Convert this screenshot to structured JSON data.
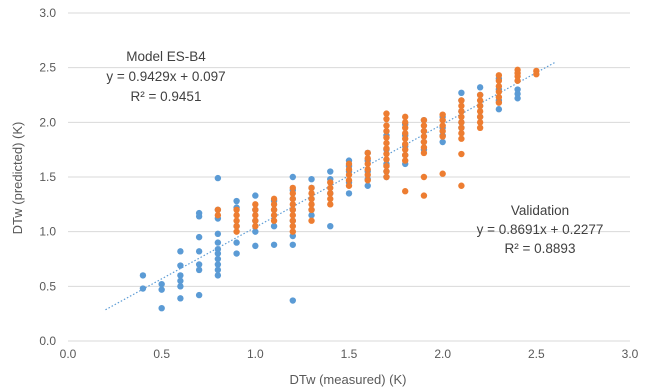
{
  "chart_data": {
    "type": "scatter",
    "xlabel": "DTw (measured) (K)",
    "ylabel": "DTw (predicted) (K)",
    "xlim": [
      0,
      3
    ],
    "ylim": [
      0,
      3
    ],
    "x_ticks": [
      "0.0",
      "0.5",
      "1.0",
      "1.5",
      "2.0",
      "2.5",
      "3.0"
    ],
    "y_ticks": [
      "0.0",
      "0.5",
      "1.0",
      "1.5",
      "2.0",
      "2.5",
      "3.0"
    ],
    "grid": "horizontal",
    "colors": {
      "model": "#5B9BD5",
      "validation": "#ED7D31",
      "trend": "#5B9BD5",
      "grid": "#D9D9D9"
    },
    "annotations": {
      "model": [
        "Model ES-B4",
        "y = 0.9429x + 0.097",
        "R² = 0.9451"
      ],
      "validation": [
        "Validation",
        "y = 0.8691x + 0.2277",
        "R² = 0.8893"
      ]
    },
    "trendline": {
      "slope": 0.9429,
      "intercept": 0.097,
      "x_range": [
        0.2,
        2.6
      ],
      "style": "dotted"
    },
    "series": [
      {
        "color": "#5B9BD5",
        "points": [
          [
            0.4,
            0.6
          ],
          [
            0.4,
            0.48
          ],
          [
            0.5,
            0.52
          ],
          [
            0.5,
            0.47
          ],
          [
            0.5,
            0.3
          ],
          [
            0.6,
            0.82
          ],
          [
            0.6,
            0.69
          ],
          [
            0.6,
            0.6
          ],
          [
            0.6,
            0.55
          ],
          [
            0.6,
            0.5
          ],
          [
            0.6,
            0.39
          ],
          [
            0.7,
            1.17
          ],
          [
            0.7,
            1.14
          ],
          [
            0.7,
            0.95
          ],
          [
            0.7,
            0.82
          ],
          [
            0.7,
            0.7
          ],
          [
            0.7,
            0.65
          ],
          [
            0.7,
            0.42
          ],
          [
            0.8,
            1.49
          ],
          [
            0.8,
            1.2
          ],
          [
            0.8,
            1.12
          ],
          [
            0.8,
            0.98
          ],
          [
            0.8,
            0.9
          ],
          [
            0.8,
            0.84
          ],
          [
            0.8,
            0.8
          ],
          [
            0.8,
            0.75
          ],
          [
            0.8,
            0.7
          ],
          [
            0.8,
            0.65
          ],
          [
            0.8,
            0.6
          ],
          [
            0.9,
            1.28
          ],
          [
            0.9,
            1.22
          ],
          [
            0.9,
            1.05
          ],
          [
            0.9,
            0.9
          ],
          [
            0.9,
            0.8
          ],
          [
            1.0,
            1.33
          ],
          [
            1.0,
            1.2
          ],
          [
            1.0,
            1.1
          ],
          [
            1.0,
            1.0
          ],
          [
            1.0,
            0.87
          ],
          [
            1.1,
            1.28
          ],
          [
            1.1,
            1.2
          ],
          [
            1.1,
            1.05
          ],
          [
            1.1,
            0.88
          ],
          [
            1.2,
            1.5
          ],
          [
            1.2,
            1.38
          ],
          [
            1.2,
            1.3
          ],
          [
            1.2,
            1.2
          ],
          [
            1.2,
            1.1
          ],
          [
            1.2,
            0.96
          ],
          [
            1.2,
            0.88
          ],
          [
            1.2,
            0.37
          ],
          [
            1.3,
            1.48
          ],
          [
            1.3,
            1.4
          ],
          [
            1.3,
            1.3
          ],
          [
            1.3,
            1.2
          ],
          [
            1.3,
            1.15
          ],
          [
            1.4,
            1.55
          ],
          [
            1.4,
            1.48
          ],
          [
            1.4,
            1.35
          ],
          [
            1.4,
            1.05
          ],
          [
            1.5,
            1.65
          ],
          [
            1.5,
            1.6
          ],
          [
            1.5,
            1.55
          ],
          [
            1.5,
            1.45
          ],
          [
            1.5,
            1.35
          ],
          [
            1.6,
            1.72
          ],
          [
            1.6,
            1.65
          ],
          [
            1.6,
            1.55
          ],
          [
            1.6,
            1.48
          ],
          [
            1.6,
            1.42
          ],
          [
            1.7,
            1.88
          ],
          [
            1.7,
            1.75
          ],
          [
            1.7,
            1.62
          ],
          [
            1.7,
            1.55
          ],
          [
            1.7,
            1.5
          ],
          [
            1.8,
            1.98
          ],
          [
            1.8,
            1.88
          ],
          [
            1.8,
            1.78
          ],
          [
            1.8,
            1.7
          ],
          [
            1.8,
            1.62
          ],
          [
            1.9,
            2.02
          ],
          [
            1.9,
            1.92
          ],
          [
            1.9,
            1.82
          ],
          [
            1.9,
            1.75
          ],
          [
            2.0,
            2.05
          ],
          [
            2.0,
            1.95
          ],
          [
            2.0,
            1.88
          ],
          [
            2.0,
            1.82
          ],
          [
            2.1,
            2.27
          ],
          [
            2.1,
            2.2
          ],
          [
            2.1,
            2.1
          ],
          [
            2.1,
            2.0
          ],
          [
            2.1,
            1.95
          ],
          [
            2.2,
            2.32
          ],
          [
            2.2,
            2.25
          ],
          [
            2.2,
            2.15
          ],
          [
            2.2,
            2.05
          ],
          [
            2.3,
            2.4
          ],
          [
            2.3,
            2.3
          ],
          [
            2.3,
            2.2
          ],
          [
            2.3,
            2.12
          ],
          [
            2.4,
            2.3
          ],
          [
            2.4,
            2.26
          ],
          [
            2.4,
            2.22
          ]
        ]
      },
      {
        "color": "#ED7D31",
        "points": [
          [
            0.8,
            1.2
          ],
          [
            0.8,
            1.15
          ],
          [
            0.9,
            1.2
          ],
          [
            0.9,
            1.15
          ],
          [
            0.9,
            1.1
          ],
          [
            0.9,
            1.05
          ],
          [
            0.9,
            1.0
          ],
          [
            1.0,
            1.25
          ],
          [
            1.0,
            1.2
          ],
          [
            1.0,
            1.15
          ],
          [
            1.0,
            1.1
          ],
          [
            1.0,
            1.05
          ],
          [
            1.1,
            1.3
          ],
          [
            1.1,
            1.25
          ],
          [
            1.1,
            1.2
          ],
          [
            1.1,
            1.15
          ],
          [
            1.1,
            1.1
          ],
          [
            1.2,
            1.4
          ],
          [
            1.2,
            1.35
          ],
          [
            1.2,
            1.3
          ],
          [
            1.2,
            1.25
          ],
          [
            1.2,
            1.2
          ],
          [
            1.2,
            1.15
          ],
          [
            1.2,
            1.1
          ],
          [
            1.2,
            1.05
          ],
          [
            1.2,
            1.0
          ],
          [
            1.3,
            1.4
          ],
          [
            1.3,
            1.35
          ],
          [
            1.3,
            1.3
          ],
          [
            1.3,
            1.25
          ],
          [
            1.3,
            1.2
          ],
          [
            1.3,
            1.1
          ],
          [
            1.4,
            1.45
          ],
          [
            1.4,
            1.4
          ],
          [
            1.4,
            1.35
          ],
          [
            1.4,
            1.3
          ],
          [
            1.4,
            1.25
          ],
          [
            1.5,
            1.62
          ],
          [
            1.5,
            1.57
          ],
          [
            1.5,
            1.52
          ],
          [
            1.5,
            1.47
          ],
          [
            1.5,
            1.42
          ],
          [
            1.6,
            1.72
          ],
          [
            1.6,
            1.67
          ],
          [
            1.6,
            1.62
          ],
          [
            1.6,
            1.57
          ],
          [
            1.6,
            1.52
          ],
          [
            1.6,
            1.47
          ],
          [
            1.7,
            2.08
          ],
          [
            1.7,
            2.03
          ],
          [
            1.7,
            1.97
          ],
          [
            1.7,
            1.92
          ],
          [
            1.7,
            1.86
          ],
          [
            1.7,
            1.81
          ],
          [
            1.7,
            1.76
          ],
          [
            1.7,
            1.71
          ],
          [
            1.7,
            1.66
          ],
          [
            1.7,
            1.6
          ],
          [
            1.7,
            1.55
          ],
          [
            1.7,
            1.5
          ],
          [
            1.8,
            2.05
          ],
          [
            1.8,
            2.0
          ],
          [
            1.8,
            1.95
          ],
          [
            1.8,
            1.9
          ],
          [
            1.8,
            1.85
          ],
          [
            1.8,
            1.8
          ],
          [
            1.8,
            1.75
          ],
          [
            1.8,
            1.7
          ],
          [
            1.8,
            1.65
          ],
          [
            1.8,
            1.37
          ],
          [
            1.9,
            2.02
          ],
          [
            1.9,
            1.97
          ],
          [
            1.9,
            1.92
          ],
          [
            1.9,
            1.87
          ],
          [
            1.9,
            1.82
          ],
          [
            1.9,
            1.77
          ],
          [
            1.9,
            1.72
          ],
          [
            1.9,
            1.5
          ],
          [
            1.9,
            1.33
          ],
          [
            2.0,
            2.07
          ],
          [
            2.0,
            2.02
          ],
          [
            2.0,
            1.97
          ],
          [
            2.0,
            1.92
          ],
          [
            2.0,
            1.87
          ],
          [
            2.0,
            1.53
          ],
          [
            2.1,
            2.2
          ],
          [
            2.1,
            2.15
          ],
          [
            2.1,
            2.1
          ],
          [
            2.1,
            2.05
          ],
          [
            2.1,
            2.0
          ],
          [
            2.1,
            1.95
          ],
          [
            2.1,
            1.9
          ],
          [
            2.1,
            1.85
          ],
          [
            2.1,
            1.71
          ],
          [
            2.1,
            1.42
          ],
          [
            2.2,
            2.25
          ],
          [
            2.2,
            2.2
          ],
          [
            2.2,
            2.15
          ],
          [
            2.2,
            2.1
          ],
          [
            2.2,
            2.05
          ],
          [
            2.2,
            2.0
          ],
          [
            2.2,
            1.95
          ],
          [
            2.3,
            2.43
          ],
          [
            2.3,
            2.38
          ],
          [
            2.3,
            2.33
          ],
          [
            2.3,
            2.28
          ],
          [
            2.3,
            2.23
          ],
          [
            2.3,
            2.18
          ],
          [
            2.4,
            2.48
          ],
          [
            2.4,
            2.45
          ],
          [
            2.4,
            2.42
          ],
          [
            2.4,
            2.38
          ],
          [
            2.5,
            2.47
          ],
          [
            2.5,
            2.44
          ]
        ]
      }
    ]
  }
}
